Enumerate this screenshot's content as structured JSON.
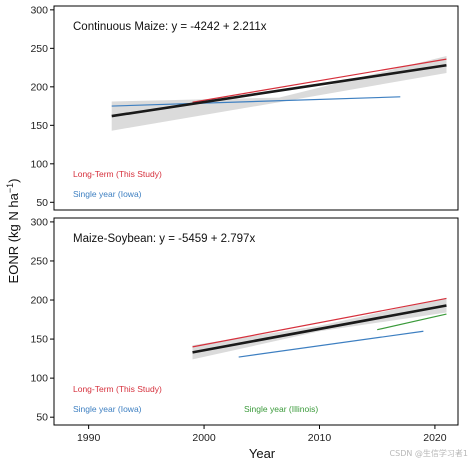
{
  "chart_data": {
    "type": "line",
    "x_label": "Year",
    "y_label": "EONR (kg N ha",
    "y_label_sup": "−1",
    "y_label_close": ")",
    "xlim": [
      1987,
      2022
    ],
    "x_ticks": [
      1990,
      2000,
      2010,
      2020
    ],
    "colors": {
      "long_term": "#d6303c",
      "single_iowa": "#3d7fc1",
      "single_illinois": "#3a9a3a",
      "regression": "#1a1a1a",
      "band": "#cfcfcf"
    },
    "panels": [
      {
        "equation": "Continuous Maize: y = -4242 + 2.211x",
        "ylim": [
          40,
          305
        ],
        "y_ticks": [
          50,
          100,
          150,
          200,
          250,
          300
        ],
        "regression": {
          "x": [
            1992,
            2021
          ],
          "y": [
            162,
            228
          ]
        },
        "ci_band": {
          "x": [
            1992,
            2006.5,
            2021
          ],
          "lower": [
            143,
            180,
            218
          ],
          "upper": [
            181,
            186,
            240
          ]
        },
        "series": [
          {
            "name": "Long-Term (This Study)",
            "color_key": "long_term",
            "x": [
              1999,
              2021
            ],
            "y": [
              180,
              236
            ]
          },
          {
            "name": "Single year (Iowa)",
            "color_key": "single_iowa",
            "x": [
              1992,
              2017
            ],
            "y": [
              175,
              187
            ]
          }
        ],
        "legend": [
          {
            "text": "Long-Term (This Study)",
            "color_key": "long_term",
            "pos": "left-1"
          },
          {
            "text": "Single year (Iowa)",
            "color_key": "single_iowa",
            "pos": "left-2"
          }
        ]
      },
      {
        "equation": "Maize-Soybean: y = -5459 + 2.797x",
        "ylim": [
          40,
          305
        ],
        "y_ticks": [
          50,
          100,
          150,
          200,
          250,
          300
        ],
        "regression": {
          "x": [
            1999,
            2021
          ],
          "y": [
            133,
            193
          ]
        },
        "ci_band": {
          "x": [
            1999,
            2010,
            2021
          ],
          "lower": [
            124,
            160,
            184
          ],
          "upper": [
            142,
            167,
            203
          ]
        },
        "series": [
          {
            "name": "Long-Term (This Study)",
            "color_key": "long_term",
            "x": [
              1999,
              2021
            ],
            "y": [
              140,
              202
            ]
          },
          {
            "name": "Single year (Iowa)",
            "color_key": "single_iowa",
            "x": [
              2003,
              2019
            ],
            "y": [
              127,
              160
            ]
          },
          {
            "name": "Single year (Illinois)",
            "color_key": "single_illinois",
            "x": [
              2015,
              2021
            ],
            "y": [
              162,
              182
            ]
          }
        ],
        "legend": [
          {
            "text": "Long-Term (This Study)",
            "color_key": "long_term",
            "pos": "left-1"
          },
          {
            "text": "Single year (Iowa)",
            "color_key": "single_iowa",
            "pos": "left-2"
          },
          {
            "text": "Single year (Illinois)",
            "color_key": "single_illinois",
            "pos": "center-2"
          }
        ]
      }
    ]
  },
  "watermark": "CSDN @生信学习者1"
}
